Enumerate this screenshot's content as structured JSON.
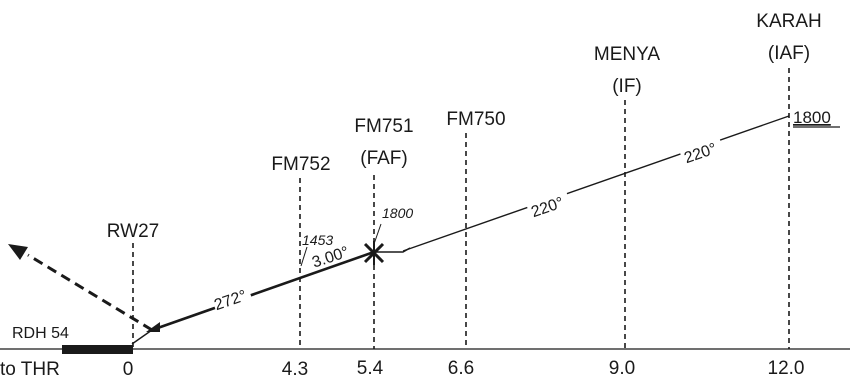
{
  "fixes": [
    {
      "id": "rw27",
      "name": "RW27",
      "role": "",
      "distance": "0"
    },
    {
      "id": "fm752",
      "name": "FM752",
      "role": "",
      "distance": "4.3"
    },
    {
      "id": "fm751",
      "name": "FM751",
      "role": "(FAF)",
      "distance": "5.4"
    },
    {
      "id": "fm750",
      "name": "FM750",
      "role": "",
      "distance": "6.6"
    },
    {
      "id": "menya",
      "name": "MENYA",
      "role": "(IF)",
      "distance": "9.0"
    },
    {
      "id": "karah",
      "name": "KARAH",
      "role": "(IAF)",
      "distance": "12.0"
    }
  ],
  "labels": {
    "to_thr": "to THR",
    "rdh": "RDH 54",
    "alt_fm752": "1453",
    "alt_fm751": "1800",
    "alt_karah": "1800",
    "glide_angle": "3.00°",
    "track_final": "272°",
    "track_mid": "220°",
    "track_top": "220°"
  },
  "colors": {
    "ink": "#1a1a1a",
    "background": "#ffffff"
  }
}
